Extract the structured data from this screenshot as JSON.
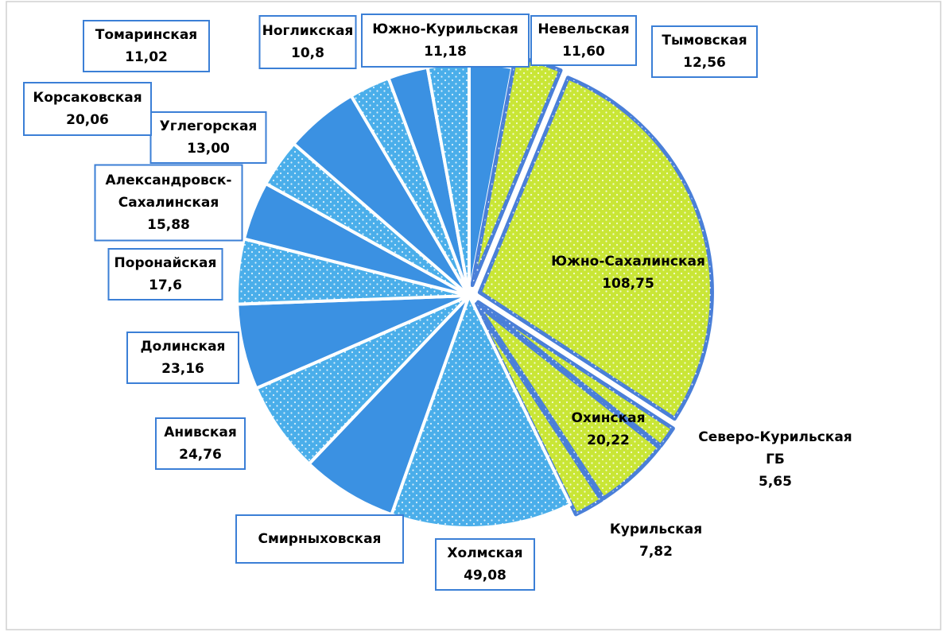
{
  "chart_data": {
    "type": "pie",
    "categories": [
      "Невельская",
      "Тымовская",
      "Южно-Сахалинская",
      "Северо-Курильская ГБ",
      "Охинская",
      "Курильская",
      "Холмская",
      "Смирныховская",
      "Анивская",
      "Долинская",
      "Поронайская",
      "Александровск-Сахалинская",
      "Углегорская",
      "Корсаковская",
      "Томаринская",
      "Ногликская",
      "Южно-Курильская"
    ],
    "values": [
      11.6,
      12.56,
      108.75,
      5.65,
      20.22,
      7.82,
      49.08,
      26,
      24.76,
      23.16,
      17.6,
      15.88,
      13,
      20.06,
      11.02,
      10.8,
      11.18
    ],
    "value_labels": [
      "11,60",
      "12,56",
      "108,75",
      "5,65",
      "20,22",
      "7,82",
      "49,08",
      null,
      "24,76",
      "23,16",
      "17,6",
      "15,88",
      "13,00",
      "20,06",
      "11,02",
      "10,8",
      "11,18"
    ],
    "colors": [
      "#3b91e2",
      "#c9e636",
      "#c9e636",
      "#c9e636",
      "#c9e636",
      "#c9e636",
      "#4aaeea",
      "#3b91e2",
      "#4aaeea",
      "#3b91e2",
      "#4aaeea",
      "#3b91e2",
      "#4aaeea",
      "#3b91e2",
      "#4aaeea",
      "#3b91e2",
      "#4aaeea"
    ],
    "dotted": [
      false,
      true,
      true,
      true,
      true,
      true,
      true,
      false,
      true,
      false,
      true,
      false,
      true,
      false,
      true,
      false,
      true
    ],
    "highlighted": [
      false,
      true,
      true,
      true,
      true,
      true,
      false,
      false,
      false,
      false,
      false,
      false,
      false,
      false,
      false,
      false,
      false
    ]
  }
}
